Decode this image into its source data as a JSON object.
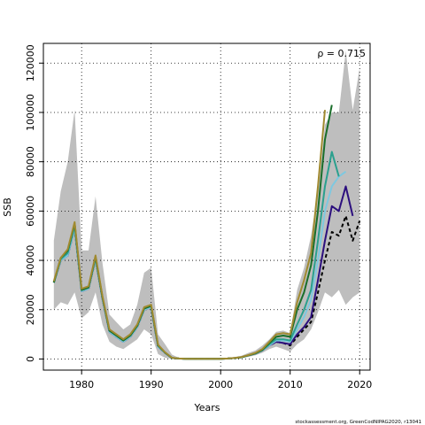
{
  "chart_data": {
    "type": "line",
    "xlabel": "Years",
    "ylabel": "SSB",
    "xlim": [
      1974.5,
      2021.5
    ],
    "ylim": [
      -4500,
      128000
    ],
    "x_ticks": [
      1980,
      1990,
      2000,
      2010,
      2020
    ],
    "y_ticks": [
      0,
      20000,
      40000,
      60000,
      80000,
      100000,
      120000
    ],
    "x_tick_labels": [
      "1980",
      "1990",
      "2000",
      "2010",
      "2020"
    ],
    "y_tick_labels": [
      "0",
      "20000",
      "40000",
      "60000",
      "80000",
      "100000",
      "120000"
    ],
    "grid": "dotted",
    "annotation": "ρ = 0.715",
    "footer": "stockassessment.org, GreenCodNIPAG2020, r13041",
    "confidence_band": {
      "color": "#bebebe",
      "x": [
        1976,
        1977,
        1978,
        1979,
        1980,
        1981,
        1982,
        1983,
        1984,
        1985,
        1986,
        1987,
        1988,
        1989,
        1990,
        1991,
        1992,
        1993,
        1994,
        1995,
        1996,
        1997,
        1998,
        1999,
        2000,
        2001,
        2002,
        2003,
        2004,
        2005,
        2006,
        2007,
        2008,
        2009,
        2010,
        2011,
        2012,
        2013,
        2014,
        2015,
        2016,
        2017,
        2018,
        2019,
        2020
      ],
      "lower": [
        20000,
        23000,
        22000,
        27000,
        16500,
        19000,
        27000,
        14000,
        7000,
        5000,
        4000,
        6000,
        8000,
        12000,
        10000,
        2000,
        500,
        100,
        50,
        30,
        20,
        20,
        20,
        30,
        50,
        100,
        200,
        400,
        900,
        1500,
        2500,
        4000,
        5000,
        4000,
        3000,
        6000,
        8000,
        12000,
        19000,
        27000,
        25000,
        28000,
        22000,
        25000,
        27000
      ],
      "upper": [
        48000,
        68000,
        80000,
        101000,
        44000,
        44000,
        66000,
        39000,
        18000,
        15000,
        12000,
        14000,
        22000,
        35000,
        37000,
        10000,
        6000,
        1800,
        500,
        200,
        100,
        100,
        100,
        150,
        300,
        500,
        800,
        1300,
        2500,
        3500,
        5500,
        8000,
        11000,
        11500,
        10500,
        28000,
        37000,
        50000,
        68000,
        95000,
        100000,
        100000,
        125000,
        101000,
        118000
      ]
    },
    "series": [
      {
        "color": "#000000",
        "dashed": true,
        "x": [
          1976,
          1977,
          1978,
          1979,
          1980,
          1981,
          1982,
          1983,
          1984,
          1985,
          1986,
          1987,
          1988,
          1989,
          1990,
          1991,
          1992,
          1993,
          1994,
          1995,
          1996,
          1997,
          1998,
          1999,
          2000,
          2001,
          2002,
          2003,
          2004,
          2005,
          2006,
          2007,
          2008,
          2009,
          2010,
          2011,
          2012,
          2013,
          2014,
          2015,
          2016,
          2017,
          2018,
          2019,
          2020
        ],
        "values": [
          31000,
          40000,
          42000,
          53000,
          27500,
          28500,
          40500,
          24500,
          11000,
          9000,
          7000,
          9000,
          13000,
          20000,
          21000,
          5000,
          2500,
          400,
          200,
          100,
          50,
          50,
          50,
          60,
          100,
          200,
          400,
          700,
          1500,
          2200,
          3500,
          5500,
          7000,
          6500,
          5500,
          9000,
          12000,
          15000,
          27000,
          40000,
          51500,
          50000,
          58000,
          48000,
          56000
        ]
      },
      {
        "color": "#2c0f7e",
        "x": [
          1976,
          1977,
          1978,
          1979,
          1980,
          1981,
          1982,
          1983,
          1984,
          1985,
          1986,
          1987,
          1988,
          1989,
          1990,
          1991,
          1992,
          1993,
          1994,
          1995,
          1996,
          1997,
          1998,
          1999,
          2000,
          2001,
          2002,
          2003,
          2004,
          2005,
          2006,
          2007,
          2008,
          2009,
          2010,
          2011,
          2012,
          2013,
          2014,
          2015,
          2016,
          2017,
          2018,
          2019
        ],
        "values": [
          31000,
          40000,
          42000,
          53000,
          27500,
          28500,
          40500,
          24500,
          11000,
          9000,
          7000,
          9000,
          13000,
          20000,
          21000,
          5000,
          2500,
          400,
          200,
          100,
          50,
          50,
          50,
          60,
          100,
          200,
          400,
          700,
          1500,
          2200,
          3500,
          5500,
          7000,
          6500,
          6000,
          10000,
          13000,
          17000,
          32000,
          48000,
          62000,
          60000,
          70000,
          58000
        ]
      },
      {
        "color": "#7ec8e0",
        "x": [
          1976,
          1977,
          1978,
          1979,
          1980,
          1981,
          1982,
          1983,
          1984,
          1985,
          1986,
          1987,
          1988,
          1989,
          1990,
          1991,
          1992,
          1993,
          1994,
          1995,
          1996,
          1997,
          1998,
          1999,
          2000,
          2001,
          2002,
          2003,
          2004,
          2005,
          2006,
          2007,
          2008,
          2009,
          2010,
          2011,
          2012,
          2013,
          2014,
          2015,
          2016,
          2017,
          2018
        ],
        "values": [
          31000,
          40000,
          42000,
          53000,
          27500,
          28500,
          40500,
          24500,
          11000,
          9000,
          7000,
          9000,
          13000,
          20000,
          21000,
          5000,
          2500,
          400,
          200,
          100,
          50,
          50,
          50,
          60,
          100,
          200,
          400,
          700,
          1500,
          2200,
          3500,
          5500,
          7500,
          7500,
          7000,
          12000,
          17000,
          24000,
          40000,
          60000,
          70000,
          74000,
          76000
        ]
      },
      {
        "color": "#2aa08e",
        "x": [
          1976,
          1977,
          1978,
          1979,
          1980,
          1981,
          1982,
          1983,
          1984,
          1985,
          1986,
          1987,
          1988,
          1989,
          1990,
          1991,
          1992,
          1993,
          1994,
          1995,
          1996,
          1997,
          1998,
          1999,
          2000,
          2001,
          2002,
          2003,
          2004,
          2005,
          2006,
          2007,
          2008,
          2009,
          2010,
          2011,
          2012,
          2013,
          2014,
          2015,
          2016,
          2017
        ],
        "values": [
          31000,
          40500,
          43000,
          54000,
          28000,
          29000,
          41000,
          25000,
          11500,
          9500,
          7500,
          9500,
          13500,
          20500,
          21500,
          5500,
          2600,
          450,
          200,
          100,
          50,
          50,
          50,
          60,
          100,
          200,
          400,
          700,
          1500,
          2300,
          3600,
          6000,
          8000,
          8000,
          7500,
          14000,
          20000,
          28000,
          48000,
          70000,
          84000,
          74000
        ]
      },
      {
        "color": "#1a6e2a",
        "x": [
          1976,
          1977,
          1978,
          1979,
          1980,
          1981,
          1982,
          1983,
          1984,
          1985,
          1986,
          1987,
          1988,
          1989,
          1990,
          1991,
          1992,
          1993,
          1994,
          1995,
          1996,
          1997,
          1998,
          1999,
          2000,
          2001,
          2002,
          2003,
          2004,
          2005,
          2006,
          2007,
          2008,
          2009,
          2010,
          2011,
          2012,
          2013,
          2014,
          2015,
          2016
        ],
        "values": [
          31000,
          41000,
          44000,
          55000,
          28000,
          29000,
          41500,
          25000,
          11500,
          9500,
          7500,
          9500,
          13500,
          20500,
          21500,
          5500,
          2600,
          450,
          200,
          100,
          50,
          50,
          50,
          60,
          100,
          200,
          400,
          700,
          1500,
          2300,
          3700,
          6500,
          9000,
          9500,
          9000,
          20000,
          27000,
          38000,
          60000,
          89000,
          103000
        ]
      },
      {
        "color": "#a08a30",
        "x": [
          1976,
          1977,
          1978,
          1979,
          1980,
          1981,
          1982,
          1983,
          1984,
          1985,
          1986,
          1987,
          1988,
          1989,
          1990,
          1991,
          1992,
          1993,
          1994,
          1995,
          1996,
          1997,
          1998,
          1999,
          2000,
          2001,
          2002,
          2003,
          2004,
          2005,
          2006,
          2007,
          2008,
          2009,
          2010,
          2011,
          2012,
          2013,
          2014,
          2015
        ],
        "values": [
          31500,
          41000,
          44500,
          55500,
          28500,
          29500,
          42000,
          25500,
          12000,
          10000,
          8000,
          10000,
          14000,
          21000,
          22000,
          5800,
          2700,
          500,
          220,
          100,
          50,
          50,
          50,
          60,
          100,
          200,
          450,
          800,
          1600,
          2500,
          4000,
          7000,
          10000,
          10500,
          10000,
          23000,
          32000,
          43000,
          70000,
          101000
        ]
      }
    ]
  }
}
